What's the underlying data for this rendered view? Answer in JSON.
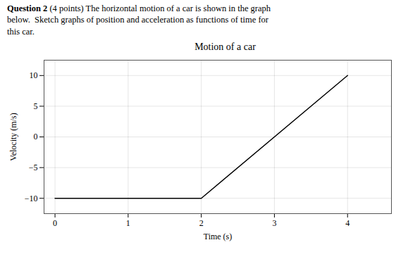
{
  "chart_data": {
    "type": "line",
    "title": "Motion of a car",
    "annotations": [
      {
        "text": "Question 2"
      },
      {
        "text": " (4 points) The horizontal motion of a car is shown in the graph\nbelow.  Sketch graphs of position and acceleration as functions of time for\nthis car."
      }
    ],
    "xlabel": "Time (s)",
    "ylabel": "Velocity (m/s)",
    "x": [
      0,
      2,
      4
    ],
    "values": [
      -10,
      -10,
      10
    ],
    "color": "#000000",
    "xlim": [
      -0.15,
      4.6
    ],
    "ylim": [
      -12.5,
      12.5
    ],
    "xticks": [
      0,
      1,
      2,
      3,
      4
    ],
    "yticks": [
      -10,
      -5,
      0,
      5,
      10
    ],
    "grid": true
  }
}
